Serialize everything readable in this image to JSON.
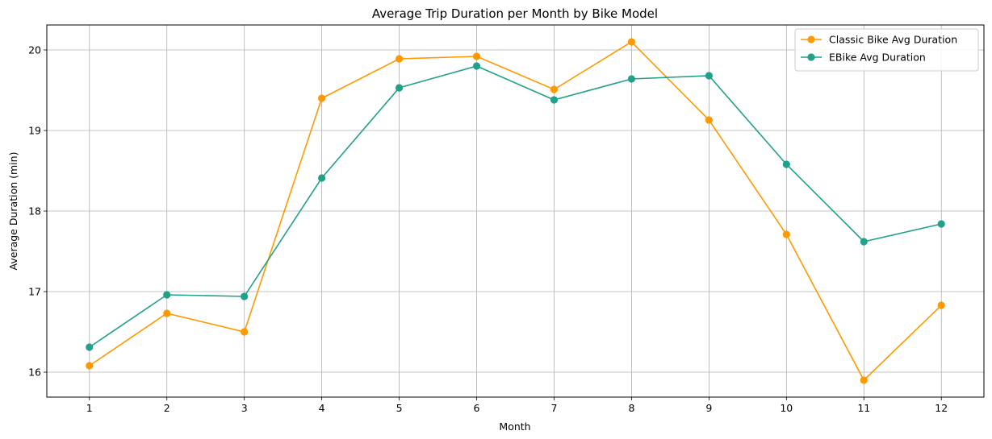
{
  "chart_data": {
    "type": "line",
    "title": "Average Trip Duration per Month by Bike Model",
    "xlabel": "Month",
    "ylabel": "Average Duration (min)",
    "x": [
      1,
      2,
      3,
      4,
      5,
      6,
      7,
      8,
      9,
      10,
      11,
      12
    ],
    "xlim": [
      0.45,
      12.55
    ],
    "ylim": [
      15.69,
      20.31
    ],
    "yticks": [
      16,
      17,
      18,
      19,
      20
    ],
    "grid": true,
    "legend_position": "top-right",
    "series": [
      {
        "name": "Classic Bike Avg Duration",
        "color": "#ff9900",
        "marker": "circle",
        "values": [
          16.08,
          16.73,
          16.5,
          19.4,
          19.89,
          19.92,
          19.51,
          20.1,
          19.13,
          17.71,
          15.9,
          16.83
        ]
      },
      {
        "name": "EBike Avg Duration",
        "color": "#21a08a",
        "marker": "circle",
        "values": [
          16.31,
          16.96,
          16.94,
          18.41,
          19.53,
          19.8,
          19.38,
          19.64,
          19.68,
          18.58,
          17.62,
          17.84
        ]
      }
    ]
  }
}
